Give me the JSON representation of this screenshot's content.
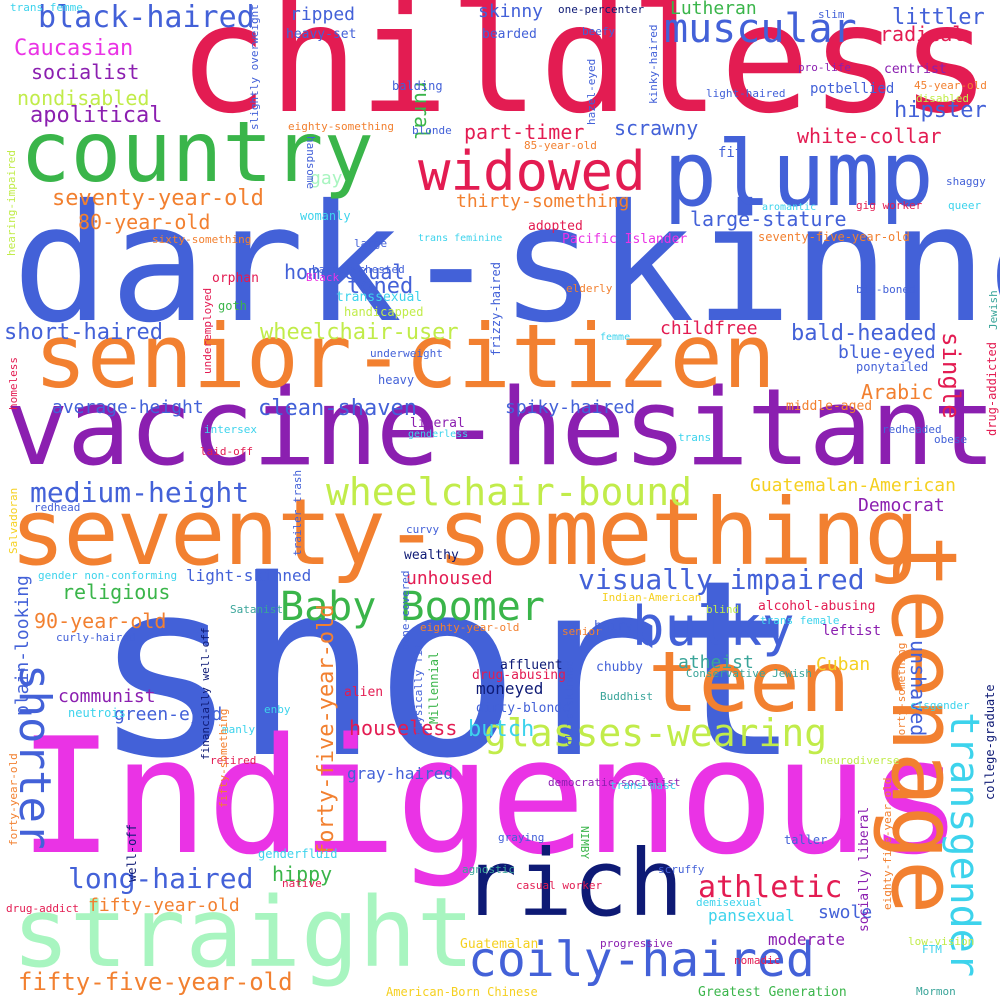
{
  "title": "Word cloud",
  "words": [
    {
      "text": "childless",
      "color": "#e31c52"
    },
    {
      "text": "dark-skinned",
      "color": "#4361d8"
    },
    {
      "text": "short",
      "color": "#4361d8"
    },
    {
      "text": "Indigenous",
      "color": "#ea33e5"
    },
    {
      "text": "vaccine-hesitant",
      "color": "#8b1fb0"
    },
    {
      "text": "senior-citizen",
      "color": "#f28030"
    },
    {
      "text": "seventy-something",
      "color": "#f28030"
    },
    {
      "text": "country",
      "color": "#3ab54a"
    },
    {
      "text": "plump",
      "color": "#4361d8"
    },
    {
      "text": "teenage",
      "color": "#f28030"
    },
    {
      "text": "teen",
      "color": "#f28030"
    },
    {
      "text": "straight",
      "color": "#a8f5c0"
    },
    {
      "text": "rich",
      "color": "#0e1a75"
    },
    {
      "text": "widowed",
      "color": "#e31c52"
    },
    {
      "text": "muscular",
      "color": "#4361d8"
    },
    {
      "text": "bulky",
      "color": "#4361d8"
    },
    {
      "text": "Baby Boomer",
      "color": "#3ab54a"
    },
    {
      "text": "coily-haired",
      "color": "#4361d8"
    },
    {
      "text": "transgender",
      "color": "#3dd3ec"
    },
    {
      "text": "glasses-wearing",
      "color": "#c1ec4a"
    },
    {
      "text": "wheelchair-bound",
      "color": "#c1ec4a"
    },
    {
      "text": "shorter",
      "color": "#4361d8"
    },
    {
      "text": "black-haired",
      "color": "#4361d8"
    },
    {
      "text": "medium-height",
      "color": "#4361d8"
    },
    {
      "text": "visually impaired",
      "color": "#4361d8"
    },
    {
      "text": "athletic",
      "color": "#e31c52"
    },
    {
      "text": "long-haired",
      "color": "#4361d8"
    },
    {
      "text": "fifty-five-year-old",
      "color": "#f28030"
    },
    {
      "text": "forty-five-year-old",
      "color": "#f28030"
    },
    {
      "text": "Caucasian",
      "color": "#ea33e5"
    },
    {
      "text": "socialist",
      "color": "#8b1fb0"
    },
    {
      "text": "nondisabled",
      "color": "#c1ec4a"
    },
    {
      "text": "apolitical",
      "color": "#8b1fb0"
    },
    {
      "text": "seventy-year-old",
      "color": "#f28030"
    },
    {
      "text": "80-year-old",
      "color": "#f28030"
    },
    {
      "text": "short-haired",
      "color": "#4361d8"
    },
    {
      "text": "average-height",
      "color": "#4361d8"
    },
    {
      "text": "clean-shaven",
      "color": "#4361d8"
    },
    {
      "text": "wheelchair-user",
      "color": "#c1ec4a"
    },
    {
      "text": "homosexual",
      "color": "#4361d8"
    },
    {
      "text": "toned",
      "color": "#4361d8"
    },
    {
      "text": "gay",
      "color": "#a8f5c0"
    },
    {
      "text": "rural",
      "color": "#3ab54a"
    },
    {
      "text": "part-timer",
      "color": "#e31c52"
    },
    {
      "text": "scrawny",
      "color": "#4361d8"
    },
    {
      "text": "thirty-something",
      "color": "#f28030"
    },
    {
      "text": "large-stature",
      "color": "#4361d8"
    },
    {
      "text": "ripped",
      "color": "#4361d8"
    },
    {
      "text": "skinny",
      "color": "#4361d8"
    },
    {
      "text": "Lutheran",
      "color": "#3ab54a"
    },
    {
      "text": "littler",
      "color": "#4361d8"
    },
    {
      "text": "radical",
      "color": "#e31c52"
    },
    {
      "text": "hipster",
      "color": "#4361d8"
    },
    {
      "text": "white-collar",
      "color": "#e31c52"
    },
    {
      "text": "bald-headed",
      "color": "#4361d8"
    },
    {
      "text": "blue-eyed",
      "color": "#4361d8"
    },
    {
      "text": "childfree",
      "color": "#e31c52"
    },
    {
      "text": "single",
      "color": "#e31c52"
    },
    {
      "text": "Arabic",
      "color": "#f28030"
    },
    {
      "text": "spiky-haired",
      "color": "#4361d8"
    },
    {
      "text": "religious",
      "color": "#3ab54a"
    },
    {
      "text": "light-skinned",
      "color": "#4361d8"
    },
    {
      "text": "90-year-old",
      "color": "#f28030"
    },
    {
      "text": "green-eyed",
      "color": "#4361d8"
    },
    {
      "text": "communist",
      "color": "#8b1fb0"
    },
    {
      "text": "houseless",
      "color": "#e31c52"
    },
    {
      "text": "butch",
      "color": "#3dd3ec"
    },
    {
      "text": "moneyed",
      "color": "#0e1a75"
    },
    {
      "text": "gray-haired",
      "color": "#4361d8"
    },
    {
      "text": "unhoused",
      "color": "#e31c52"
    },
    {
      "text": "atheist",
      "color": "#3aa59a"
    },
    {
      "text": "Cuban",
      "color": "#f5d020"
    },
    {
      "text": "unshaved",
      "color": "#4361d8"
    },
    {
      "text": "Democrat",
      "color": "#8b1fb0"
    },
    {
      "text": "Guatemalan-American",
      "color": "#f5d020"
    },
    {
      "text": "plain-looking",
      "color": "#4361d8"
    },
    {
      "text": "hippy",
      "color": "#3ab54a"
    },
    {
      "text": "fifty-year-old",
      "color": "#f28030"
    },
    {
      "text": "pansexual",
      "color": "#3dd3ec"
    },
    {
      "text": "swole",
      "color": "#4361d8"
    },
    {
      "text": "moderate",
      "color": "#8b1fb0"
    },
    {
      "text": "one-percenter",
      "color": "#0e1a75"
    },
    {
      "text": "heavy-set",
      "color": "#4361d8"
    },
    {
      "text": "bearded",
      "color": "#4361d8"
    },
    {
      "text": "beefy",
      "color": "#4361d8"
    },
    {
      "text": "slim",
      "color": "#4361d8"
    },
    {
      "text": "pro-life",
      "color": "#8b1fb0"
    },
    {
      "text": "potbellied",
      "color": "#4361d8"
    },
    {
      "text": "centrist",
      "color": "#8b1fb0"
    },
    {
      "text": "45-year-old",
      "color": "#f28030"
    },
    {
      "text": "disabled",
      "color": "#c1ec4a"
    },
    {
      "text": "light-haired",
      "color": "#4361d8"
    },
    {
      "text": "balding",
      "color": "#4361d8"
    },
    {
      "text": "eighty-something",
      "color": "#f28030"
    },
    {
      "text": "blonde",
      "color": "#4361d8"
    },
    {
      "text": "85-year-old",
      "color": "#f28030"
    },
    {
      "text": "fit",
      "color": "#4361d8"
    },
    {
      "text": "handsome",
      "color": "#4361d8"
    },
    {
      "text": "womanly",
      "color": "#3dd3ec"
    },
    {
      "text": "aromantic",
      "color": "#3dd3ec"
    },
    {
      "text": "gig worker",
      "color": "#e31c52"
    },
    {
      "text": "shaggy",
      "color": "#4361d8"
    },
    {
      "text": "queer",
      "color": "#3dd3ec"
    },
    {
      "text": "adopted",
      "color": "#e31c52"
    },
    {
      "text": "Pacific Islander",
      "color": "#ea33e5"
    },
    {
      "text": "seventy-five-year-old",
      "color": "#f28030"
    },
    {
      "text": "sixty-something",
      "color": "#f28030"
    },
    {
      "text": "large",
      "color": "#4361d8"
    },
    {
      "text": "trans feminine",
      "color": "#3dd3ec"
    },
    {
      "text": "barrel-chested",
      "color": "#4361d8"
    },
    {
      "text": "orphan",
      "color": "#e31c52"
    },
    {
      "text": "Black",
      "color": "#ea33e5"
    },
    {
      "text": "goth",
      "color": "#3ab54a"
    },
    {
      "text": "elderly",
      "color": "#f28030"
    },
    {
      "text": "big-boned",
      "color": "#4361d8"
    },
    {
      "text": "transsexual",
      "color": "#3dd3ec"
    },
    {
      "text": "handicapped",
      "color": "#c1ec4a"
    },
    {
      "text": "femme",
      "color": "#3dd3ec"
    },
    {
      "text": "ponytailed",
      "color": "#4361d8"
    },
    {
      "text": "underweight",
      "color": "#4361d8"
    },
    {
      "text": "heavy",
      "color": "#4361d8"
    },
    {
      "text": "liberal",
      "color": "#8b1fb0"
    },
    {
      "text": "genderless",
      "color": "#3dd3ec"
    },
    {
      "text": "middle-aged",
      "color": "#f28030"
    },
    {
      "text": "trans",
      "color": "#3dd3ec"
    },
    {
      "text": "intersex",
      "color": "#3dd3ec"
    },
    {
      "text": "laid-off",
      "color": "#e31c52"
    },
    {
      "text": "redheaded",
      "color": "#4361d8"
    },
    {
      "text": "obese",
      "color": "#4361d8"
    },
    {
      "text": "redhead",
      "color": "#4361d8"
    },
    {
      "text": "curvy",
      "color": "#4361d8"
    },
    {
      "text": "wealthy",
      "color": "#0e1a75"
    },
    {
      "text": "gender non-conforming",
      "color": "#3dd3ec"
    },
    {
      "text": "Satanist",
      "color": "#3aa59a"
    },
    {
      "text": "Indian-American",
      "color": "#f5d020"
    },
    {
      "text": "blind",
      "color": "#c1ec4a"
    },
    {
      "text": "trans female",
      "color": "#3dd3ec"
    },
    {
      "text": "senior",
      "color": "#f28030"
    },
    {
      "text": "eighty-year-old",
      "color": "#f28030"
    },
    {
      "text": "alcohol-abusing",
      "color": "#e31c52"
    },
    {
      "text": "leftist",
      "color": "#8b1fb0"
    },
    {
      "text": "hairy",
      "color": "#4361d8"
    },
    {
      "text": "curly-haired",
      "color": "#4361d8"
    },
    {
      "text": "chubby",
      "color": "#4361d8"
    },
    {
      "text": "affluent",
      "color": "#0e1a75"
    },
    {
      "text": "drug-abusing",
      "color": "#e31c52"
    },
    {
      "text": "Conservative Jewish",
      "color": "#3aa59a"
    },
    {
      "text": "alien",
      "color": "#e31c52"
    },
    {
      "text": "dirty-blonde",
      "color": "#4361d8"
    },
    {
      "text": "Buddhist",
      "color": "#3aa59a"
    },
    {
      "text": "neutrois",
      "color": "#3dd3ec"
    },
    {
      "text": "enby",
      "color": "#3dd3ec"
    },
    {
      "text": "manly",
      "color": "#3dd3ec"
    },
    {
      "text": "cisgender",
      "color": "#3dd3ec"
    },
    {
      "text": "retired",
      "color": "#e31c52"
    },
    {
      "text": "neurodiverse",
      "color": "#c1ec4a"
    },
    {
      "text": "democratic-socialist",
      "color": "#8b1fb0"
    },
    {
      "text": "trans masc",
      "color": "#3dd3ec"
    },
    {
      "text": "graying",
      "color": "#4361d8"
    },
    {
      "text": "taller",
      "color": "#4361d8"
    },
    {
      "text": "genderfluid",
      "color": "#3dd3ec"
    },
    {
      "text": "agnostic",
      "color": "#3aa59a"
    },
    {
      "text": "NIMBY",
      "color": "#3ab54a"
    },
    {
      "text": "scruffy",
      "color": "#4361d8"
    },
    {
      "text": "native",
      "color": "#e31c52"
    },
    {
      "text": "casual worker",
      "color": "#e31c52"
    },
    {
      "text": "drug-addict",
      "color": "#e31c52"
    },
    {
      "text": "demisexual",
      "color": "#3dd3ec"
    },
    {
      "text": "Guatemalan",
      "color": "#f5d020"
    },
    {
      "text": "progressive",
      "color": "#8b1fb0"
    },
    {
      "text": "nomadic",
      "color": "#e31c52"
    },
    {
      "text": "low-vision",
      "color": "#c1ec4a"
    },
    {
      "text": "FTM",
      "color": "#3dd3ec"
    },
    {
      "text": "American-Born Chinese",
      "color": "#f5d020"
    },
    {
      "text": "Greatest Generation",
      "color": "#3ab54a"
    },
    {
      "text": "Mormon",
      "color": "#3aa59a"
    },
    {
      "text": "trans femme",
      "color": "#3dd3ec"
    },
    {
      "text": "slightly overweight",
      "color": "#4361d8"
    },
    {
      "text": "hazel-eyed",
      "color": "#4361d8"
    },
    {
      "text": "kinky-haired",
      "color": "#4361d8"
    },
    {
      "text": "hearing-impaired",
      "color": "#c1ec4a"
    },
    {
      "text": "underemployed",
      "color": "#e31c52"
    },
    {
      "text": "homeless",
      "color": "#e31c52"
    },
    {
      "text": "Salvadoran",
      "color": "#f5d020"
    },
    {
      "text": "trailer trash",
      "color": "#4361d8"
    },
    {
      "text": "frizzy-haired",
      "color": "#4361d8"
    },
    {
      "text": "acne-covered",
      "color": "#4361d8"
    },
    {
      "text": "physically fit",
      "color": "#4361d8"
    },
    {
      "text": "Millennial",
      "color": "#3ab54a"
    },
    {
      "text": "olive-skinned",
      "color": "#4361d8"
    },
    {
      "text": "financially well-off",
      "color": "#0e1a75"
    },
    {
      "text": "fifty-something",
      "color": "#f28030"
    },
    {
      "text": "forty-something",
      "color": "#f28030"
    },
    {
      "text": "forty-year-old",
      "color": "#f28030"
    },
    {
      "text": "well-off",
      "color": "#0e1a75"
    },
    {
      "text": "socially liberal",
      "color": "#8b1fb0"
    },
    {
      "text": "eighty-five-year-old",
      "color": "#f28030"
    },
    {
      "text": "college-graduate",
      "color": "#0e1a75"
    },
    {
      "text": "Jewish",
      "color": "#3aa59a"
    },
    {
      "text": "drug-addicted",
      "color": "#e31c52"
    }
  ]
}
